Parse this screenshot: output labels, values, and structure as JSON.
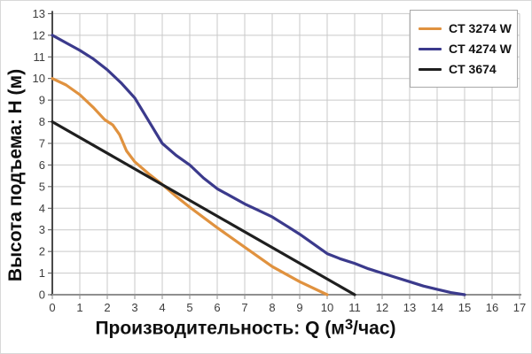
{
  "figure": {
    "background": "#ffffff",
    "outer_border": "#d8d8d8"
  },
  "chart_data": {
    "type": "line",
    "title": "",
    "ylabel": "Высота подъема: Н (м)",
    "xlabel_prefix": "Производительность: Q (м",
    "xlabel_sup": "3",
    "xlabel_suffix": "/час)",
    "xlim": [
      0,
      17
    ],
    "ylim": [
      0,
      13
    ],
    "grid": true,
    "legend_position": "top-right",
    "x_ticks": [
      "0",
      "1",
      "2",
      "3",
      "4",
      "5",
      "6",
      "7",
      "8",
      "9",
      "10",
      "11",
      "12",
      "13",
      "14",
      "15",
      "16",
      "17"
    ],
    "y_ticks": [
      "0",
      "1",
      "2",
      "3",
      "4",
      "5",
      "6",
      "7",
      "8",
      "9",
      "10",
      "11",
      "12",
      "13"
    ],
    "series": [
      {
        "name": "CT 3274 W",
        "color": "#E0923F",
        "x": [
          0,
          0.5,
          1,
          1.5,
          1.9,
          2.2,
          2.45,
          2.7,
          3,
          3.5,
          4,
          4.5,
          5,
          6,
          7,
          8,
          9,
          10
        ],
        "y": [
          10,
          9.7,
          9.25,
          8.65,
          8.1,
          7.85,
          7.4,
          6.65,
          6.15,
          5.6,
          5.1,
          4.55,
          4.05,
          3.1,
          2.2,
          1.3,
          0.6,
          0
        ]
      },
      {
        "name": "CT 4274 W",
        "color": "#3B3A8C",
        "x": [
          0,
          0.5,
          1,
          1.5,
          2,
          2.5,
          3,
          3.5,
          4,
          4.5,
          5,
          5.5,
          6,
          6.5,
          7,
          7.5,
          8,
          8.5,
          9,
          9.5,
          10,
          10.5,
          11,
          11.5,
          12,
          12.5,
          13,
          13.5,
          14,
          14.5,
          15
        ],
        "y": [
          12,
          11.65,
          11.3,
          10.9,
          10.4,
          9.8,
          9.1,
          8.05,
          7.0,
          6.45,
          6.0,
          5.4,
          4.9,
          4.55,
          4.2,
          3.9,
          3.6,
          3.2,
          2.8,
          2.35,
          1.9,
          1.65,
          1.45,
          1.2,
          1.0,
          0.8,
          0.6,
          0.4,
          0.25,
          0.1,
          0
        ]
      },
      {
        "name": "CT 3674",
        "color": "#1F1F1F",
        "x": [
          0,
          11
        ],
        "y": [
          8,
          0
        ]
      }
    ],
    "colors": {
      "grid": "#c9c9c9",
      "axis_x": "#8f8f8f",
      "axis_y": "#4a4a4a",
      "tick_label": "#3d3d3d",
      "title": "#0f0f0f",
      "legend_border": "#a8a8a8",
      "legend_background": "#ffffff"
    }
  }
}
